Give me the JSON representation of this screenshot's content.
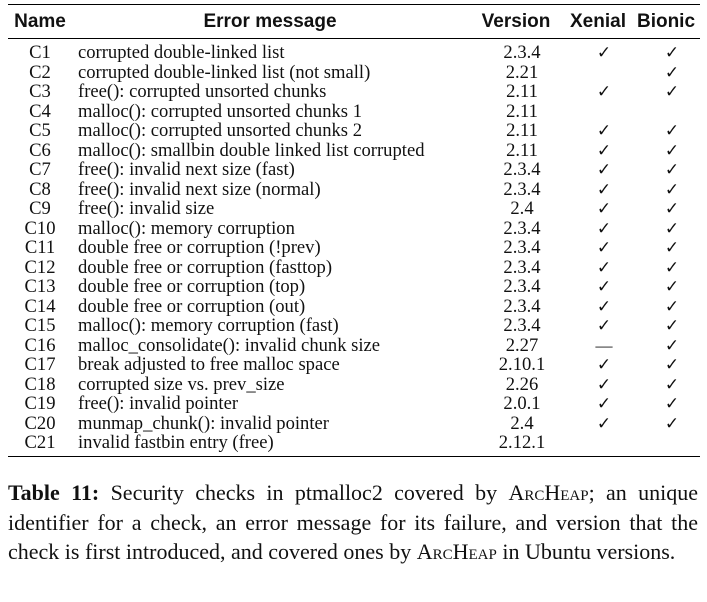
{
  "table": {
    "headers": {
      "name": "Name",
      "message": "Error message",
      "version": "Version",
      "xenial": "Xenial",
      "bionic": "Bionic"
    },
    "rows": [
      {
        "name": "C1",
        "message": "corrupted double-linked list",
        "version": "2.3.4",
        "xenial": "✓",
        "bionic": "✓"
      },
      {
        "name": "C2",
        "message": "corrupted double-linked list (not small)",
        "version": "2.21",
        "xenial": "",
        "bionic": "✓"
      },
      {
        "name": "C3",
        "message": "free(): corrupted unsorted chunks",
        "version": "2.11",
        "xenial": "✓",
        "bionic": "✓"
      },
      {
        "name": "C4",
        "message": "malloc(): corrupted unsorted chunks 1",
        "version": "2.11",
        "xenial": "",
        "bionic": ""
      },
      {
        "name": "C5",
        "message": "malloc(): corrupted unsorted chunks 2",
        "version": "2.11",
        "xenial": "✓",
        "bionic": "✓"
      },
      {
        "name": "C6",
        "message": "malloc(): smallbin double linked list corrupted",
        "version": "2.11",
        "xenial": "✓",
        "bionic": "✓"
      },
      {
        "name": "C7",
        "message": "free(): invalid next size (fast)",
        "version": "2.3.4",
        "xenial": "✓",
        "bionic": "✓"
      },
      {
        "name": "C8",
        "message": "free(): invalid next size (normal)",
        "version": "2.3.4",
        "xenial": "✓",
        "bionic": "✓"
      },
      {
        "name": "C9",
        "message": "free(): invalid size",
        "version": "2.4",
        "xenial": "✓",
        "bionic": "✓"
      },
      {
        "name": "C10",
        "message": "malloc(): memory corruption",
        "version": "2.3.4",
        "xenial": "✓",
        "bionic": "✓"
      },
      {
        "name": "C11",
        "message": "double free or corruption (!prev)",
        "version": "2.3.4",
        "xenial": "✓",
        "bionic": "✓"
      },
      {
        "name": "C12",
        "message": "double free or corruption (fasttop)",
        "version": "2.3.4",
        "xenial": "✓",
        "bionic": "✓"
      },
      {
        "name": "C13",
        "message": "double free or corruption (top)",
        "version": "2.3.4",
        "xenial": "✓",
        "bionic": "✓"
      },
      {
        "name": "C14",
        "message": "double free or corruption (out)",
        "version": "2.3.4",
        "xenial": "✓",
        "bionic": "✓"
      },
      {
        "name": "C15",
        "message": "malloc(): memory corruption (fast)",
        "version": "2.3.4",
        "xenial": "✓",
        "bionic": "✓"
      },
      {
        "name": "C16",
        "message": "malloc_consolidate(): invalid chunk size",
        "version": "2.27",
        "xenial": "—",
        "bionic": "✓"
      },
      {
        "name": "C17",
        "message": "break adjusted to free malloc space",
        "version": "2.10.1",
        "xenial": "✓",
        "bionic": "✓"
      },
      {
        "name": "C18",
        "message": "corrupted size vs. prev_size",
        "version": "2.26",
        "xenial": "✓",
        "bionic": "✓"
      },
      {
        "name": "C19",
        "message": "free(): invalid pointer",
        "version": "2.0.1",
        "xenial": "✓",
        "bionic": "✓"
      },
      {
        "name": "C20",
        "message": "munmap_chunk(): invalid pointer",
        "version": "2.4",
        "xenial": "✓",
        "bionic": "✓"
      },
      {
        "name": "C21",
        "message": "invalid fastbin entry (free)",
        "version": "2.12.1",
        "xenial": "",
        "bionic": ""
      }
    ]
  },
  "caption": {
    "label": "Table 11:",
    "text_1": "Security checks in ptmalloc2 covered by",
    "tool_name": "ArcHeap",
    "text_2": "; an unique identifier for a check, an error message for its failure, and version that the check is first introduced, and covered ones by",
    "text_3": "in Ubuntu versions."
  }
}
